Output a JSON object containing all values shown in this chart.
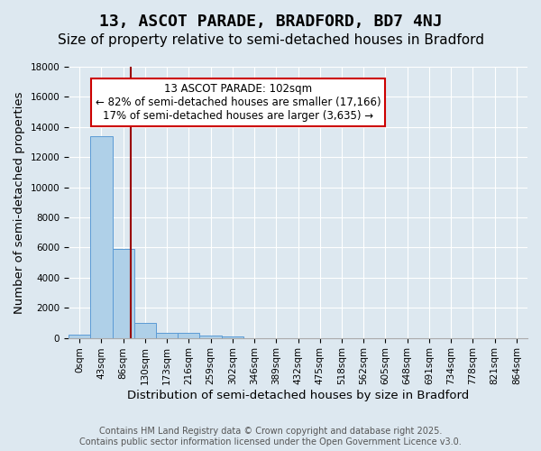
{
  "title": "13, ASCOT PARADE, BRADFORD, BD7 4NJ",
  "subtitle": "Size of property relative to semi-detached houses in Bradford",
  "xlabel": "Distribution of semi-detached houses by size in Bradford",
  "ylabel": "Number of semi-detached properties",
  "bin_labels": [
    "0sqm",
    "43sqm",
    "86sqm",
    "130sqm",
    "173sqm",
    "216sqm",
    "259sqm",
    "302sqm",
    "346sqm",
    "389sqm",
    "432sqm",
    "475sqm",
    "518sqm",
    "562sqm",
    "605sqm",
    "648sqm",
    "691sqm",
    "734sqm",
    "778sqm",
    "821sqm",
    "864sqm"
  ],
  "bar_values": [
    200,
    13400,
    5900,
    1000,
    350,
    350,
    150,
    100,
    0,
    0,
    0,
    0,
    0,
    0,
    0,
    0,
    0,
    0,
    0,
    0,
    0
  ],
  "bar_color": "#afd0e8",
  "bar_edge_color": "#5b9bd5",
  "bar_width": 1.0,
  "ylim": [
    0,
    18000
  ],
  "yticks": [
    0,
    2000,
    4000,
    6000,
    8000,
    10000,
    12000,
    14000,
    16000,
    18000
  ],
  "red_line_x": 2.33,
  "annotation_title": "13 ASCOT PARADE: 102sqm",
  "annotation_line1": "← 82% of semi-detached houses are smaller (17,166)",
  "annotation_line2": "17% of semi-detached houses are larger (3,635) →",
  "annotation_box_color": "#ffffff",
  "annotation_box_edge": "#cc0000",
  "red_line_color": "#990000",
  "footer_line1": "Contains HM Land Registry data © Crown copyright and database right 2025.",
  "footer_line2": "Contains public sector information licensed under the Open Government Licence v3.0.",
  "background_color": "#dde8f0",
  "plot_bg_color": "#dde8f0",
  "title_fontsize": 13,
  "subtitle_fontsize": 11,
  "axis_label_fontsize": 9.5,
  "tick_fontsize": 7.5,
  "footer_fontsize": 7,
  "annotation_fontsize": 8.5
}
